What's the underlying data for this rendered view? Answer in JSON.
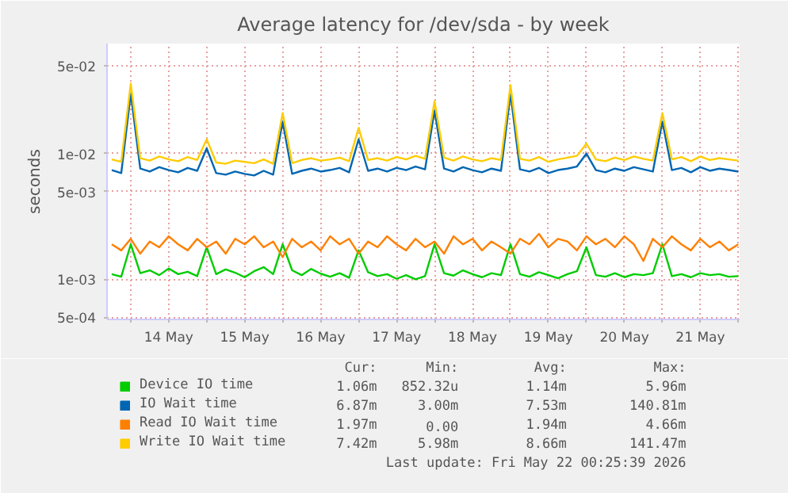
{
  "chart_data": {
    "type": "line",
    "title": "Average latency for /dev/sda - by week",
    "ylabel": "seconds",
    "x": [
      "2026-05-13T18:00",
      "2026-05-13T21:00",
      "2026-05-14T00:00",
      "2026-05-14T03:00",
      "2026-05-14T06:00",
      "2026-05-14T09:00",
      "2026-05-14T12:00",
      "2026-05-14T15:00",
      "2026-05-14T18:00",
      "2026-05-14T21:00",
      "2026-05-15T00:00",
      "2026-05-15T03:00",
      "2026-05-15T06:00",
      "2026-05-15T09:00",
      "2026-05-15T12:00",
      "2026-05-15T15:00",
      "2026-05-15T18:00",
      "2026-05-15T21:00",
      "2026-05-16T00:00",
      "2026-05-16T03:00",
      "2026-05-16T06:00",
      "2026-05-16T09:00",
      "2026-05-16T12:00",
      "2026-05-16T15:00",
      "2026-05-16T18:00",
      "2026-05-16T21:00",
      "2026-05-17T00:00",
      "2026-05-17T03:00",
      "2026-05-17T06:00",
      "2026-05-17T09:00",
      "2026-05-17T12:00",
      "2026-05-17T15:00",
      "2026-05-17T18:00",
      "2026-05-17T21:00",
      "2026-05-18T00:00",
      "2026-05-18T03:00",
      "2026-05-18T06:00",
      "2026-05-18T09:00",
      "2026-05-18T12:00",
      "2026-05-18T15:00",
      "2026-05-18T18:00",
      "2026-05-18T21:00",
      "2026-05-19T00:00",
      "2026-05-19T03:00",
      "2026-05-19T06:00",
      "2026-05-19T09:00",
      "2026-05-19T12:00",
      "2026-05-19T15:00",
      "2026-05-19T18:00",
      "2026-05-19T21:00",
      "2026-05-20T00:00",
      "2026-05-20T03:00",
      "2026-05-20T06:00",
      "2026-05-20T09:00",
      "2026-05-20T12:00",
      "2026-05-20T15:00",
      "2026-05-20T18:00",
      "2026-05-20T21:00",
      "2026-05-21T00:00",
      "2026-05-21T03:00",
      "2026-05-21T06:00",
      "2026-05-21T09:00",
      "2026-05-21T12:00",
      "2026-05-21T15:00",
      "2026-05-21T18:00",
      "2026-05-21T21:00",
      "2026-05-22T00:00"
    ],
    "xlim": [
      "2026-05-13T16:30",
      "2026-05-22T00:25"
    ],
    "xticks": [
      {
        "value": "2026-05-14T00:00",
        "label": null
      },
      {
        "value": "2026-05-14T12:00",
        "label": "14 May"
      },
      {
        "value": "2026-05-15T00:00",
        "label": null
      },
      {
        "value": "2026-05-15T12:00",
        "label": "15 May"
      },
      {
        "value": "2026-05-16T00:00",
        "label": null
      },
      {
        "value": "2026-05-16T12:00",
        "label": "16 May"
      },
      {
        "value": "2026-05-17T00:00",
        "label": null
      },
      {
        "value": "2026-05-17T12:00",
        "label": "17 May"
      },
      {
        "value": "2026-05-18T00:00",
        "label": null
      },
      {
        "value": "2026-05-18T12:00",
        "label": "18 May"
      },
      {
        "value": "2026-05-19T00:00",
        "label": null
      },
      {
        "value": "2026-05-19T12:00",
        "label": "19 May"
      },
      {
        "value": "2026-05-20T00:00",
        "label": null
      },
      {
        "value": "2026-05-20T12:00",
        "label": "20 May"
      },
      {
        "value": "2026-05-21T00:00",
        "label": null
      },
      {
        "value": "2026-05-21T12:00",
        "label": "21 May"
      },
      {
        "value": "2026-05-22T00:00",
        "label": null
      }
    ],
    "log": true,
    "ylim": [
      0.00048,
      0.075
    ],
    "yticks": [
      {
        "value": 0.0005,
        "label": "5e-04"
      },
      {
        "value": 0.001,
        "label": "1e-03"
      },
      {
        "value": 0.005,
        "label": "5e-03"
      },
      {
        "value": 0.01,
        "label": "1e-02"
      },
      {
        "value": 0.05,
        "label": "5e-02"
      }
    ],
    "grid": true,
    "legend": "bottom",
    "series": [
      {
        "name": "Device IO time",
        "color": "#00cc00",
        "values": [
          0.0011,
          0.00105,
          0.0019,
          0.00112,
          0.00118,
          0.00108,
          0.00122,
          0.0011,
          0.00115,
          0.00106,
          0.0018,
          0.0011,
          0.0012,
          0.00113,
          0.00104,
          0.00116,
          0.00125,
          0.0011,
          0.0019,
          0.00118,
          0.00108,
          0.00121,
          0.00111,
          0.00105,
          0.00112,
          0.00103,
          0.0017,
          0.00114,
          0.00106,
          0.0011,
          0.00101,
          0.00108,
          0.001,
          0.00106,
          0.0019,
          0.00112,
          0.00107,
          0.00118,
          0.0011,
          0.00104,
          0.00112,
          0.00108,
          0.0019,
          0.0011,
          0.00105,
          0.00114,
          0.00108,
          0.00102,
          0.0011,
          0.00116,
          0.0018,
          0.00108,
          0.00105,
          0.00112,
          0.00104,
          0.0011,
          0.00108,
          0.00112,
          0.0019,
          0.00106,
          0.0011,
          0.00104,
          0.00112,
          0.00108,
          0.0011,
          0.00105,
          0.00106
        ]
      },
      {
        "name": "IO Wait time",
        "color": "#0066b3",
        "values": [
          0.0074,
          0.007,
          0.03,
          0.0076,
          0.0072,
          0.0078,
          0.0074,
          0.0071,
          0.0077,
          0.0073,
          0.011,
          0.007,
          0.0068,
          0.0072,
          0.0069,
          0.0067,
          0.0073,
          0.0068,
          0.018,
          0.0069,
          0.0073,
          0.0076,
          0.0072,
          0.0074,
          0.0077,
          0.0071,
          0.013,
          0.0073,
          0.0076,
          0.0072,
          0.0077,
          0.0074,
          0.0079,
          0.0075,
          0.022,
          0.0076,
          0.0072,
          0.0078,
          0.0074,
          0.0071,
          0.0076,
          0.0073,
          0.03,
          0.0075,
          0.0072,
          0.0077,
          0.007,
          0.0074,
          0.0076,
          0.0079,
          0.01,
          0.0074,
          0.0071,
          0.0076,
          0.0073,
          0.0078,
          0.0075,
          0.0072,
          0.018,
          0.0074,
          0.0077,
          0.0071,
          0.0078,
          0.0073,
          0.0076,
          0.0074,
          0.0072
        ]
      },
      {
        "name": "Read IO Wait time",
        "color": "#ff8000",
        "values": [
          0.0019,
          0.0017,
          0.0021,
          0.0016,
          0.002,
          0.0018,
          0.0022,
          0.0019,
          0.0017,
          0.0021,
          0.0018,
          0.002,
          0.0016,
          0.0021,
          0.0019,
          0.0022,
          0.0018,
          0.002,
          0.0015,
          0.0021,
          0.0018,
          0.002,
          0.0017,
          0.0022,
          0.0019,
          0.0021,
          0.0016,
          0.002,
          0.0018,
          0.0022,
          0.0019,
          0.0017,
          0.0021,
          0.0018,
          0.002,
          0.0016,
          0.0022,
          0.0019,
          0.0021,
          0.0017,
          0.002,
          0.0018,
          0.0016,
          0.0021,
          0.0019,
          0.0023,
          0.0018,
          0.0021,
          0.002,
          0.0017,
          0.0022,
          0.0019,
          0.0021,
          0.0018,
          0.0022,
          0.0019,
          0.0014,
          0.0021,
          0.0018,
          0.0022,
          0.0019,
          0.0017,
          0.0021,
          0.0018,
          0.002,
          0.0017,
          0.0019
        ]
      },
      {
        "name": "Write IO Wait time",
        "color": "#ffcc00",
        "values": [
          0.009,
          0.0086,
          0.036,
          0.0092,
          0.0088,
          0.0095,
          0.009,
          0.0087,
          0.0094,
          0.0089,
          0.013,
          0.0085,
          0.0083,
          0.0088,
          0.0086,
          0.0084,
          0.009,
          0.0083,
          0.021,
          0.0084,
          0.0089,
          0.0092,
          0.0088,
          0.009,
          0.0093,
          0.0087,
          0.016,
          0.0089,
          0.0092,
          0.0088,
          0.0094,
          0.009,
          0.0096,
          0.0091,
          0.026,
          0.0093,
          0.0088,
          0.0095,
          0.009,
          0.0087,
          0.0092,
          0.0089,
          0.035,
          0.0091,
          0.0088,
          0.0094,
          0.0086,
          0.009,
          0.0093,
          0.0096,
          0.012,
          0.009,
          0.0087,
          0.0093,
          0.0089,
          0.0095,
          0.0091,
          0.0088,
          0.021,
          0.009,
          0.0094,
          0.0087,
          0.0095,
          0.0089,
          0.0092,
          0.009,
          0.0088
        ]
      }
    ],
    "annotations": [
      "Cur:",
      "Min:",
      "Avg:",
      "Max:",
      "1.06m",
      "852.32u",
      "1.14m",
      "5.96m",
      "6.87m",
      "3.00m",
      "7.53m",
      "140.81m",
      "1.97m",
      "0.00",
      "1.94m",
      "4.66m",
      "7.42m",
      "5.98m",
      "8.66m",
      "141.47m",
      "Last update: Fri May 22 00:25:39 2026"
    ]
  }
}
